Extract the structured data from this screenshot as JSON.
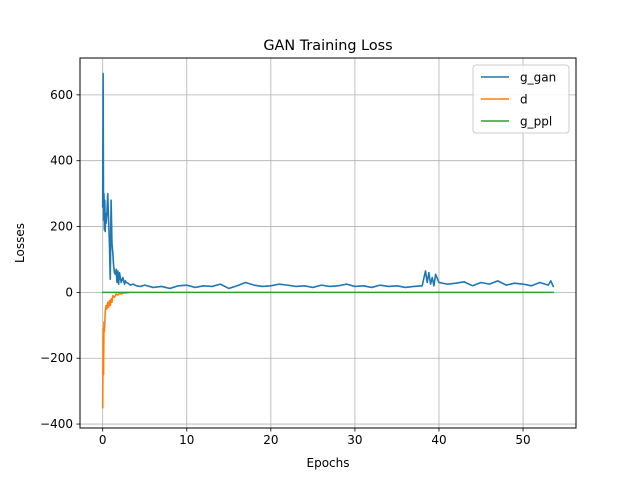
{
  "chart_data": {
    "type": "line",
    "title": "GAN Training Loss",
    "xlabel": "Epochs",
    "ylabel": "Losses",
    "xlim": [
      -2.7,
      56.3
    ],
    "ylim": [
      -412,
      712
    ],
    "xticks": [
      0,
      10,
      20,
      30,
      40,
      50
    ],
    "yticks": [
      -400,
      -200,
      0,
      200,
      400,
      600
    ],
    "xtick_labels": [
      "0",
      "10",
      "20",
      "30",
      "40",
      "50"
    ],
    "ytick_labels": [
      "−400",
      "−200",
      "0",
      "200",
      "400",
      "600"
    ],
    "grid": true,
    "legend_position": "top-right",
    "series": [
      {
        "name": "g_gan",
        "color": "#1f77b4",
        "x": [
          0,
          0.05,
          0.1,
          0.15,
          0.2,
          0.25,
          0.3,
          0.35,
          0.4,
          0.5,
          0.6,
          0.7,
          0.8,
          0.9,
          1.0,
          1.05,
          1.1,
          1.2,
          1.3,
          1.4,
          1.5,
          1.6,
          1.7,
          1.8,
          1.9,
          2.0,
          2.2,
          2.4,
          2.6,
          2.7,
          2.8,
          3.0,
          3.3,
          3.6,
          4.0,
          4.5,
          5,
          6,
          7,
          8,
          9,
          10,
          11,
          12,
          13,
          14,
          15,
          16,
          17,
          18,
          19,
          20,
          21,
          22,
          23,
          24,
          25,
          26,
          27,
          28,
          29,
          30,
          31,
          32,
          33,
          34,
          35,
          36,
          37,
          38,
          38.4,
          38.6,
          38.8,
          39.0,
          39.2,
          39.4,
          39.6,
          40,
          41,
          42,
          43,
          44,
          45,
          46,
          47,
          48,
          49,
          50,
          51,
          52,
          53,
          53.3,
          53.6
        ],
        "y": [
          260,
          665,
          220,
          300,
          190,
          280,
          185,
          240,
          210,
          240,
          300,
          220,
          150,
          40,
          280,
          220,
          150,
          120,
          80,
          60,
          55,
          70,
          30,
          65,
          25,
          60,
          30,
          45,
          25,
          35,
          30,
          28,
          22,
          25,
          20,
          18,
          22,
          15,
          18,
          12,
          20,
          22,
          15,
          20,
          18,
          25,
          12,
          20,
          30,
          22,
          18,
          20,
          25,
          22,
          18,
          20,
          15,
          22,
          18,
          20,
          25,
          18,
          20,
          15,
          22,
          18,
          20,
          15,
          18,
          20,
          65,
          30,
          60,
          25,
          45,
          20,
          55,
          30,
          25,
          28,
          32,
          20,
          30,
          25,
          35,
          22,
          28,
          25,
          20,
          30,
          22,
          35,
          18
        ]
      },
      {
        "name": "d",
        "color": "#ff7f0e",
        "x": [
          0,
          0.05,
          0.1,
          0.15,
          0.2,
          0.3,
          0.4,
          0.5,
          0.6,
          0.7,
          0.8,
          0.9,
          1.0,
          1.1,
          1.2,
          1.4,
          1.6,
          1.8,
          2.0,
          2.2,
          2.5,
          3.0
        ],
        "y": [
          -350,
          -110,
          -250,
          -90,
          -120,
          -60,
          -40,
          -50,
          -30,
          -45,
          -25,
          -40,
          -20,
          -30,
          -10,
          -15,
          -5,
          -8,
          -3,
          -5,
          -2,
          -1
        ]
      },
      {
        "name": "g_ppl",
        "color": "#2ca02c",
        "x": [
          0,
          53.6
        ],
        "y": [
          0,
          0
        ]
      }
    ]
  }
}
